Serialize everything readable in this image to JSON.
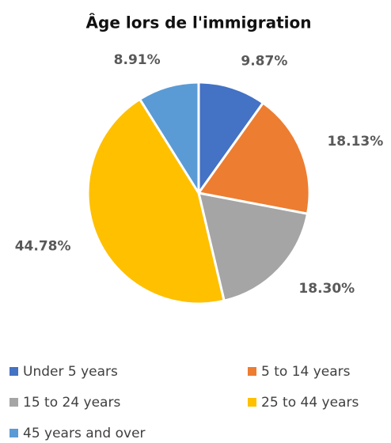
{
  "chart_data": {
    "type": "pie",
    "title": "Âge lors de l'immigration",
    "categories": [
      "Under 5 years",
      "5 to 14 years",
      "15 to 24 years",
      "25 to 44 years",
      "45 years and over"
    ],
    "values": [
      9.87,
      18.13,
      18.3,
      44.78,
      8.91
    ],
    "value_labels": [
      "9.87%",
      "18.13%",
      "18.30%",
      "44.78%",
      "8.91%"
    ],
    "colors": [
      "#4472c4",
      "#ed7d31",
      "#a5a5a5",
      "#ffc000",
      "#5b9bd5"
    ],
    "legend": "bottom"
  }
}
